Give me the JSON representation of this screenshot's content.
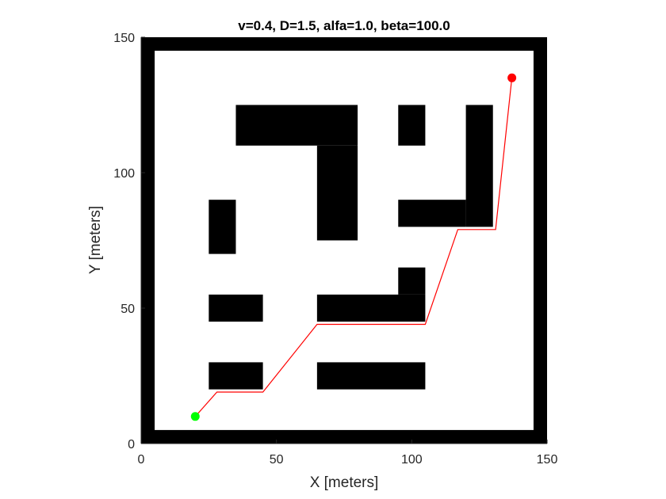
{
  "chart_data": {
    "type": "scatter",
    "title": "v=0.4, D=1.5, alfa=1.0, beta=100.0",
    "xlabel": "X [meters]",
    "ylabel": "Y [meters]",
    "xlim": [
      0,
      150
    ],
    "ylim": [
      0,
      150
    ],
    "xticks": [
      0,
      50,
      100,
      150
    ],
    "yticks": [
      0,
      50,
      100,
      150
    ],
    "grid": false,
    "colors": {
      "obstacle": "#000000",
      "free_space": "#ffffff",
      "path": "#ff0000",
      "start": "#00ff00",
      "goal": "#ff0000"
    },
    "obstacles": [
      {
        "name": "border-left",
        "x0": 0,
        "x1": 5,
        "y0": 0,
        "y1": 150
      },
      {
        "name": "border-right",
        "x0": 145,
        "x1": 150,
        "y0": 0,
        "y1": 150
      },
      {
        "name": "border-top",
        "x0": 0,
        "x1": 150,
        "y0": 145,
        "y1": 150
      },
      {
        "name": "border-bottom",
        "x0": 0,
        "x1": 150,
        "y0": 0,
        "y1": 5
      },
      {
        "name": "top-bar",
        "x0": 35,
        "x1": 80,
        "y0": 110,
        "y1": 125
      },
      {
        "name": "top-stem",
        "x0": 65,
        "x1": 80,
        "y0": 75,
        "y1": 110
      },
      {
        "name": "small-block-top",
        "x0": 95,
        "x1": 105,
        "y0": 110,
        "y1": 125
      },
      {
        "name": "right-l-vertical",
        "x0": 120,
        "x1": 130,
        "y0": 80,
        "y1": 125
      },
      {
        "name": "right-l-horizontal",
        "x0": 95,
        "x1": 120,
        "y0": 80,
        "y1": 90
      },
      {
        "name": "left-vertical",
        "x0": 25,
        "x1": 35,
        "y0": 70,
        "y1": 90
      },
      {
        "name": "left-mid-bar",
        "x0": 25,
        "x1": 45,
        "y0": 45,
        "y1": 55
      },
      {
        "name": "center-bar",
        "x0": 65,
        "x1": 105,
        "y0": 45,
        "y1": 55
      },
      {
        "name": "center-bar-riser",
        "x0": 95,
        "x1": 105,
        "y0": 55,
        "y1": 65
      },
      {
        "name": "left-low-bar",
        "x0": 25,
        "x1": 45,
        "y0": 20,
        "y1": 30
      },
      {
        "name": "center-low-bar",
        "x0": 65,
        "x1": 105,
        "y0": 20,
        "y1": 30
      }
    ],
    "path": {
      "x": [
        20,
        28,
        45,
        65,
        105,
        117,
        131,
        137
      ],
      "y": [
        10,
        19,
        19,
        44,
        44,
        79,
        79,
        135
      ]
    },
    "start": {
      "x": 20,
      "y": 10
    },
    "goal": {
      "x": 137,
      "y": 135
    }
  }
}
